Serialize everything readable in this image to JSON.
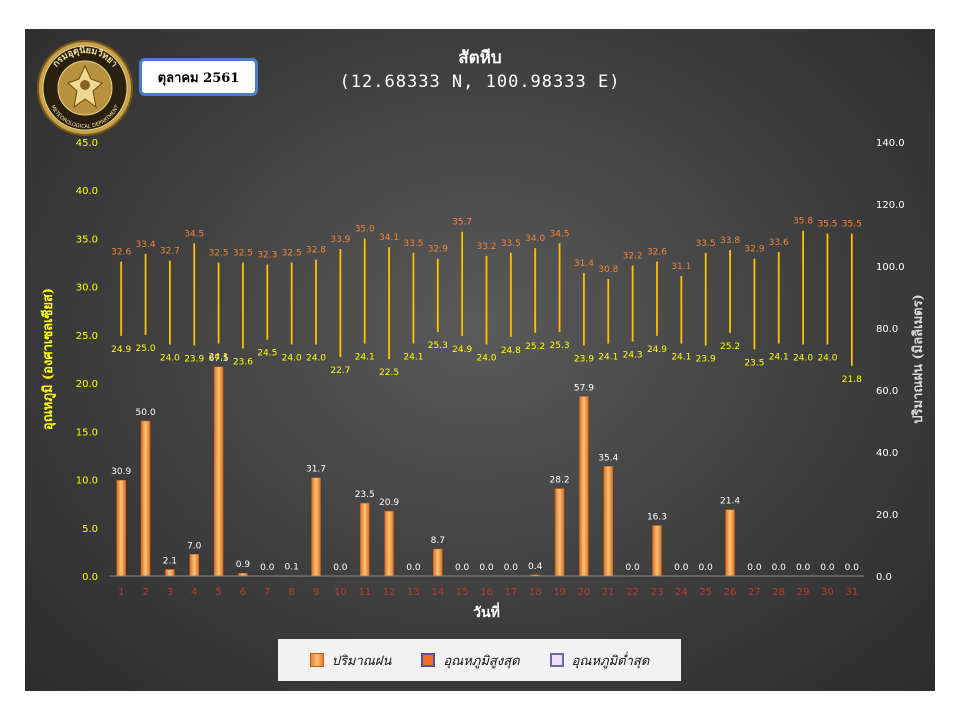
{
  "header": {
    "title": "สัตหีบ",
    "coords": "(12.68333 N, 100.98333 E)",
    "month": "ตุลาคม 2561"
  },
  "logo": {
    "text_top": "กรมอุตุนิยมวิทยา",
    "text_bottom": "METEOROLOGICAL DEPARTMENT"
  },
  "legend": {
    "rain": "ปริมาณฝน",
    "tmax": "อุณหภูมิสูงสุด",
    "tmin": "อุณหภูมิต่ำสุด"
  },
  "colors": {
    "rain_bar": "#f39a3c",
    "temp_line": "#ffc000",
    "tmax_label": "#f0843c",
    "tmin_label": "#ffff00",
    "rain_label": "#ffffff",
    "x_tick": "#c0392b",
    "y_left_tick": "#ffff00",
    "y_right_tick": "#ffffff"
  },
  "chart_data": {
    "type": "bar",
    "categories": [
      "1",
      "2",
      "3",
      "4",
      "5",
      "6",
      "7",
      "8",
      "9",
      "10",
      "11",
      "12",
      "13",
      "14",
      "15",
      "16",
      "17",
      "18",
      "19",
      "20",
      "21",
      "22",
      "23",
      "24",
      "25",
      "26",
      "27",
      "28",
      "29",
      "30",
      "31"
    ],
    "xlabel": "วันที่",
    "ylabel_left": "อุณหภูมิ (องศาเซลเซียส)",
    "ylabel_right": "ปริมาณฝน (มิลลิเมตร)",
    "ylim_left": [
      0,
      45
    ],
    "ylim_right": [
      0,
      140
    ],
    "yticks_left": [
      "0.0",
      "5.0",
      "10.0",
      "15.0",
      "20.0",
      "25.0",
      "30.0",
      "35.0",
      "40.0",
      "45.0"
    ],
    "yticks_right": [
      "0.0",
      "20.0",
      "40.0",
      "60.0",
      "80.0",
      "100.0",
      "120.0",
      "140.0"
    ],
    "series": [
      {
        "name": "ปริมาณฝน",
        "axis": "right",
        "type": "bar",
        "values": [
          30.9,
          50.0,
          2.1,
          7.0,
          67.5,
          0.9,
          0.0,
          0.1,
          31.7,
          0.0,
          23.5,
          20.9,
          0.0,
          8.7,
          0.0,
          0.0,
          0.0,
          0.4,
          28.2,
          57.9,
          35.4,
          0.0,
          16.3,
          0.0,
          0.0,
          21.4,
          0.0,
          0.0,
          0.0,
          0.0,
          0.0
        ]
      },
      {
        "name": "อุณหภูมิสูงสุด",
        "axis": "left",
        "type": "range-top",
        "values": [
          32.6,
          33.4,
          32.7,
          34.5,
          32.5,
          32.5,
          32.3,
          32.5,
          32.8,
          33.9,
          35.0,
          34.1,
          33.5,
          32.9,
          35.7,
          33.2,
          33.5,
          34.0,
          34.5,
          31.4,
          30.8,
          32.2,
          32.6,
          31.1,
          33.5,
          33.8,
          32.9,
          33.6,
          35.8,
          35.5,
          35.5
        ]
      },
      {
        "name": "อุณหภูมิต่ำสุด",
        "axis": "left",
        "type": "range-bottom",
        "values": [
          24.9,
          25.0,
          24.0,
          23.9,
          24.1,
          23.6,
          24.5,
          24.0,
          24.0,
          22.7,
          24.1,
          22.5,
          24.1,
          25.3,
          24.9,
          24.0,
          24.8,
          25.2,
          25.3,
          23.9,
          24.1,
          24.3,
          24.9,
          24.1,
          23.9,
          25.2,
          23.5,
          24.1,
          24.0,
          24.0,
          21.8
        ]
      }
    ],
    "grid": false,
    "legend_position": "bottom"
  }
}
